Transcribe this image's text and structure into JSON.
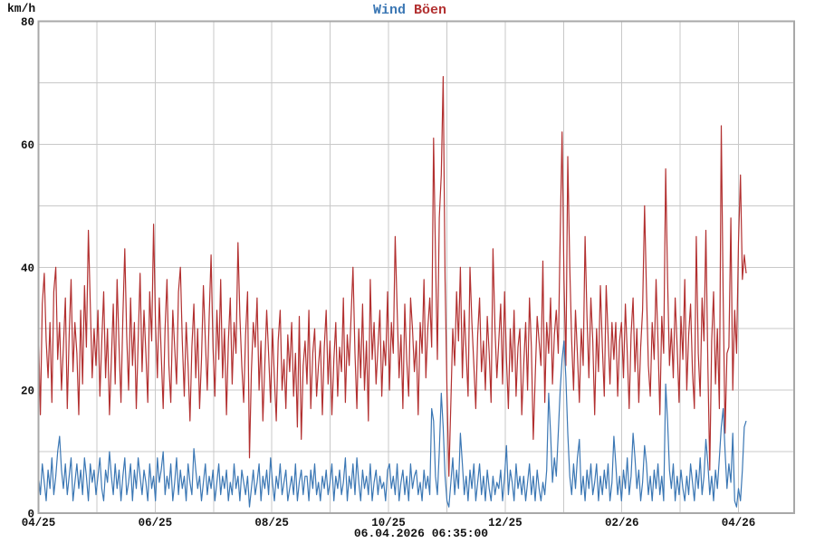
{
  "chart_data": {
    "type": "line",
    "title": "Wind Böen",
    "y_unit_label": "km/h",
    "ylim": [
      0,
      80
    ],
    "y_ticks": [
      0,
      20,
      40,
      60,
      80
    ],
    "y_grid_step": 10,
    "x_tick_labels": [
      "04/25",
      "06/25",
      "08/25",
      "10/25",
      "12/25",
      "02/26",
      "04/26"
    ],
    "x_grid": "monthly",
    "x_start": "04/25",
    "x_end": "04/26",
    "sample_interval": "daily",
    "grid": true,
    "legend_position": "top-center",
    "footnote": "06.04.2026 06:35:00",
    "colors": {
      "wind": "#3b77b4",
      "boen": "#b23030",
      "grid": "#c8c8c8",
      "border": "#a8a8a8",
      "text": "#111111",
      "background": "#ffffff"
    },
    "series": [
      {
        "name": "Wind",
        "color_key": "wind",
        "values": [
          6,
          3,
          8,
          5,
          2,
          7,
          4,
          9,
          3,
          6,
          10,
          12.5,
          7,
          4,
          8,
          3,
          6,
          9,
          2,
          5,
          8,
          4,
          7,
          3,
          9,
          6,
          2,
          8,
          5,
          7,
          3,
          6,
          9,
          4,
          2,
          7,
          5,
          10,
          6,
          3,
          8,
          4,
          7,
          2,
          6,
          9,
          3,
          5,
          8,
          2,
          7,
          4,
          9,
          6,
          3,
          7,
          5,
          2,
          8,
          4,
          6,
          2,
          9,
          5,
          7,
          10,
          3,
          6,
          4,
          8,
          2,
          5,
          9,
          3,
          7,
          4,
          6,
          2,
          8,
          5,
          3,
          10.5,
          7,
          4,
          6,
          2,
          5,
          8,
          3,
          6,
          4,
          7,
          2,
          5,
          8,
          3,
          6,
          4,
          7,
          2,
          5,
          3,
          8,
          4,
          6,
          2,
          7,
          5,
          3,
          6,
          1,
          4,
          7,
          3,
          5,
          8,
          2,
          6,
          4,
          7,
          3,
          9,
          5,
          2,
          6,
          4,
          8,
          3,
          5,
          7,
          2,
          4,
          6,
          3,
          8,
          2,
          5,
          7,
          3,
          6,
          6,
          2,
          7,
          4,
          8,
          3,
          5,
          2,
          6,
          4,
          7,
          3,
          5,
          8,
          2,
          6,
          4,
          7,
          3,
          5,
          9,
          2,
          6,
          4,
          8,
          3,
          9,
          5,
          2,
          7,
          4,
          6,
          3,
          8,
          2,
          5,
          7,
          3,
          6,
          4,
          5,
          2,
          7,
          8,
          4,
          6,
          3,
          8,
          2,
          5,
          7,
          3,
          6,
          2,
          8,
          4,
          6,
          7,
          3,
          5,
          2,
          7,
          4,
          6,
          3,
          17,
          15,
          6,
          3,
          10,
          19.5,
          14,
          6,
          2,
          1,
          5,
          9,
          3,
          7,
          4,
          13,
          8,
          3,
          6,
          2,
          7,
          4,
          8,
          2,
          5,
          8,
          3,
          6,
          2,
          7,
          4,
          2,
          6,
          3,
          5,
          4,
          7,
          2,
          6,
          11,
          3,
          7,
          5,
          2,
          8,
          4,
          6,
          3,
          6,
          2,
          5,
          8,
          3,
          6,
          2,
          7,
          4,
          2,
          5,
          3,
          7,
          19.5,
          13,
          5,
          9,
          6,
          13,
          20,
          25,
          28,
          22,
          13,
          6,
          3,
          8,
          4,
          9,
          12,
          3,
          6,
          2,
          7,
          4,
          8,
          3,
          5,
          8,
          2,
          6,
          3,
          7,
          4,
          8,
          2,
          5,
          12.5,
          8,
          3,
          6,
          2,
          7,
          4,
          9,
          3,
          6,
          13,
          9,
          4,
          7,
          2,
          5,
          11,
          8,
          3,
          6,
          2,
          7,
          4,
          8,
          3,
          6,
          2,
          21,
          15,
          7,
          4,
          8,
          2,
          6,
          3,
          7,
          4,
          2,
          6,
          3,
          8,
          5,
          2,
          7,
          4,
          9,
          3,
          6,
          12,
          8,
          3,
          6,
          2,
          7,
          4,
          9,
          14,
          17,
          10,
          4,
          8,
          5,
          13,
          2,
          1,
          4,
          2,
          7,
          14,
          15
        ]
      },
      {
        "name": "Böen",
        "color_key": "boen",
        "values": [
          30,
          16,
          34,
          39,
          28,
          22,
          31,
          18,
          36,
          40,
          25,
          31,
          20,
          27,
          35,
          17,
          29,
          38,
          23,
          31,
          26,
          16,
          33,
          21,
          37,
          27,
          46,
          34,
          22,
          30,
          24,
          33,
          19,
          28,
          36,
          22,
          30,
          16,
          25,
          34,
          21,
          38,
          27,
          18,
          32,
          43,
          29,
          20,
          35,
          24,
          31,
          17,
          28,
          39,
          23,
          33,
          26,
          18,
          36,
          28,
          47,
          31,
          22,
          35,
          26,
          17,
          30,
          38,
          24,
          18,
          33,
          27,
          21,
          36,
          40,
          28,
          19,
          31,
          24,
          15,
          27,
          34,
          22,
          30,
          17,
          25,
          37,
          28,
          20,
          32,
          42,
          27,
          19,
          33,
          25,
          38,
          22,
          30,
          16,
          28,
          35,
          21,
          31,
          26,
          44,
          32,
          24,
          18,
          29,
          36,
          9,
          23,
          31,
          27,
          35,
          20,
          28,
          15,
          24,
          33,
          26,
          18,
          30,
          22,
          15,
          28,
          33,
          20,
          25,
          17,
          29,
          23,
          31,
          19,
          26,
          14,
          32,
          12,
          24,
          28,
          21,
          33,
          17,
          26,
          30,
          19,
          24,
          28,
          16,
          27,
          33,
          21,
          28,
          16,
          25,
          31,
          19,
          27,
          23,
          35,
          18,
          29,
          24,
          32,
          40,
          26,
          17,
          30,
          22,
          34,
          20,
          28,
          15,
          38,
          25,
          31,
          21,
          27,
          33,
          19,
          28,
          24,
          36,
          20,
          31,
          26,
          45,
          33,
          22,
          29,
          17,
          34,
          25,
          19,
          35,
          30,
          23,
          28,
          16,
          31,
          26,
          38,
          22,
          30,
          35,
          27,
          61,
          42,
          25,
          48,
          55,
          71,
          38,
          20,
          6,
          18,
          30,
          24,
          36,
          28,
          40,
          22,
          33,
          26,
          19,
          40,
          31,
          24,
          17,
          29,
          35,
          23,
          28,
          20,
          32,
          26,
          18,
          43,
          30,
          22,
          28,
          34,
          21,
          36,
          25,
          17,
          30,
          23,
          33,
          19,
          27,
          30,
          16,
          24,
          31,
          20,
          35,
          27,
          12,
          22,
          32,
          28,
          24,
          41,
          18,
          31,
          26,
          35,
          21,
          29,
          33,
          26,
          45,
          62,
          38,
          24,
          58,
          40,
          28,
          20,
          33,
          26,
          18,
          30,
          24,
          45,
          32,
          22,
          35,
          28,
          16,
          30,
          23,
          37,
          27,
          19,
          37,
          29,
          21,
          31,
          25,
          31,
          19,
          28,
          31,
          22,
          34,
          26,
          17,
          29,
          35,
          23,
          30,
          18,
          27,
          33,
          50,
          36,
          24,
          19,
          31,
          25,
          38,
          28,
          16,
          32,
          26,
          56,
          38,
          24,
          30,
          22,
          35,
          27,
          18,
          32,
          25,
          38,
          20,
          29,
          34,
          23,
          17,
          45,
          26,
          19,
          35,
          28,
          46,
          24,
          7,
          28,
          36,
          21,
          30,
          17,
          63,
          35,
          13,
          26,
          27,
          48,
          20,
          33,
          26,
          44,
          55,
          38,
          42,
          39
        ]
      }
    ]
  }
}
